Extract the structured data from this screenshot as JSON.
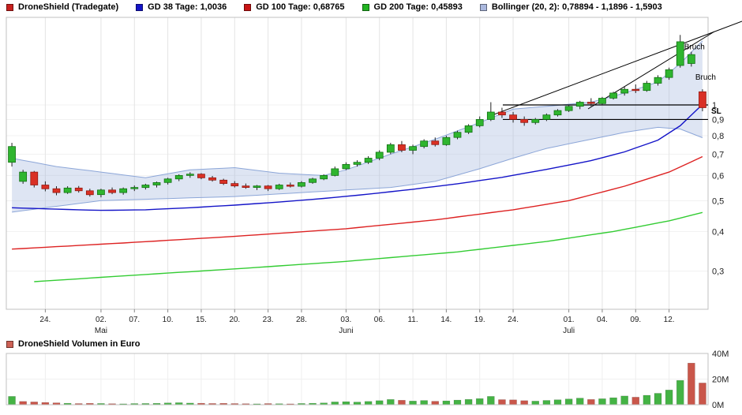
{
  "header_legend": {
    "items": [
      {
        "label": "DroneShield (Tradegate)",
        "color": "#c8201e"
      },
      {
        "label": "GD 38 Tage: 1,0036",
        "color": "#1414c8"
      },
      {
        "label": "GD 100 Tage: 0,68765",
        "color": "#c81414"
      },
      {
        "label": "GD 200 Tage: 0,45893",
        "color": "#22b422"
      },
      {
        "label": "Bollinger (20, 2): 0,78894 - 1,1896 - 1,5903",
        "color": "#aab8de"
      }
    ]
  },
  "volume_panel": {
    "legend_label": "DroneShield Volumen in Euro",
    "legend_color": "#cd6155",
    "vmax": 40,
    "y_ticks": [
      {
        "v": 40,
        "label": "40M"
      },
      {
        "v": 20,
        "label": "20M"
      },
      {
        "v": 0,
        "label": "0M"
      }
    ]
  },
  "chart_data": {
    "type": "candlestick+volume",
    "title": "DroneShield (Tradegate)",
    "y_scale": "log",
    "ylim": [
      0.27,
      1.85
    ],
    "y_ticks": [
      {
        "v": 1.0,
        "label": "1"
      },
      {
        "v": 0.9,
        "label": "0,9"
      },
      {
        "v": 0.8,
        "label": "0,8"
      },
      {
        "v": 0.7,
        "label": "0,7"
      },
      {
        "v": 0.6,
        "label": "0,6"
      },
      {
        "v": 0.5,
        "label": "0,5"
      },
      {
        "v": 0.4,
        "label": "0,4"
      },
      {
        "v": 0.3,
        "label": "0,3"
      }
    ],
    "x_ticks": [
      {
        "i": 3,
        "label": "24."
      },
      {
        "i": 8,
        "label": "02."
      },
      {
        "i": 11,
        "label": "07."
      },
      {
        "i": 14,
        "label": "10."
      },
      {
        "i": 17,
        "label": "15."
      },
      {
        "i": 20,
        "label": "20."
      },
      {
        "i": 23,
        "label": "23."
      },
      {
        "i": 26,
        "label": "28."
      },
      {
        "i": 30,
        "label": "03."
      },
      {
        "i": 33,
        "label": "06."
      },
      {
        "i": 36,
        "label": "11."
      },
      {
        "i": 39,
        "label": "14."
      },
      {
        "i": 42,
        "label": "19."
      },
      {
        "i": 45,
        "label": "24."
      },
      {
        "i": 50,
        "label": "01."
      },
      {
        "i": 53,
        "label": "04."
      },
      {
        "i": 56,
        "label": "09."
      },
      {
        "i": 59,
        "label": "12."
      }
    ],
    "month_labels": [
      {
        "i": 8,
        "label": "Mai"
      },
      {
        "i": 30,
        "label": "Juni"
      },
      {
        "i": 50,
        "label": "Juli"
      }
    ],
    "candles": {
      "columns": [
        "date",
        "open",
        "high",
        "low",
        "close",
        "volume_mio_eur"
      ],
      "rows": [
        [
          "19.04.",
          0.66,
          0.76,
          0.64,
          0.74,
          6.5
        ],
        [
          "22.04.",
          0.575,
          0.625,
          0.565,
          0.615,
          2.6
        ],
        [
          "23.04.",
          0.615,
          0.62,
          0.55,
          0.56,
          2.2
        ],
        [
          "24.04.",
          0.56,
          0.575,
          0.535,
          0.545,
          1.8
        ],
        [
          "25.04.",
          0.545,
          0.555,
          0.52,
          0.53,
          1.5
        ],
        [
          "26.04.",
          0.53,
          0.555,
          0.525,
          0.548,
          1.2
        ],
        [
          "29.04.",
          0.548,
          0.556,
          0.53,
          0.537,
          0.9
        ],
        [
          "30.04.",
          0.537,
          0.545,
          0.515,
          0.522,
          1.1
        ],
        [
          "02.05.",
          0.522,
          0.545,
          0.512,
          0.54,
          1.0
        ],
        [
          "03.05.",
          0.54,
          0.55,
          0.524,
          0.53,
          0.8
        ],
        [
          "06.05.",
          0.53,
          0.55,
          0.522,
          0.545,
          0.7
        ],
        [
          "07.05.",
          0.545,
          0.558,
          0.536,
          0.55,
          0.9
        ],
        [
          "08.05.",
          0.55,
          0.565,
          0.542,
          0.56,
          1.0
        ],
        [
          "09.05.",
          0.56,
          0.574,
          0.55,
          0.57,
          1.1
        ],
        [
          "10.05.",
          0.57,
          0.59,
          0.562,
          0.585,
          1.4
        ],
        [
          "13.05.",
          0.585,
          0.605,
          0.576,
          0.6,
          1.6
        ],
        [
          "14.05.",
          0.6,
          0.614,
          0.59,
          0.606,
          1.3
        ],
        [
          "15.05.",
          0.606,
          0.61,
          0.584,
          0.59,
          1.2
        ],
        [
          "16.05.",
          0.59,
          0.598,
          0.574,
          0.58,
          1.0
        ],
        [
          "17.05.",
          0.58,
          0.586,
          0.56,
          0.566,
          1.1
        ],
        [
          "20.05.",
          0.566,
          0.576,
          0.55,
          0.556,
          0.9
        ],
        [
          "21.05.",
          0.556,
          0.566,
          0.545,
          0.55,
          0.8
        ],
        [
          "22.05.",
          0.55,
          0.56,
          0.54,
          0.556,
          0.7
        ],
        [
          "23.05.",
          0.556,
          0.56,
          0.536,
          0.545,
          0.9
        ],
        [
          "24.05.",
          0.545,
          0.565,
          0.54,
          0.56,
          0.8
        ],
        [
          "27.05.",
          0.56,
          0.57,
          0.55,
          0.555,
          0.7
        ],
        [
          "28.05.",
          0.555,
          0.576,
          0.55,
          0.57,
          1.0
        ],
        [
          "29.05.",
          0.57,
          0.59,
          0.565,
          0.585,
          1.2
        ],
        [
          "30.05.",
          0.585,
          0.605,
          0.58,
          0.6,
          1.4
        ],
        [
          "31.05.",
          0.6,
          0.64,
          0.596,
          0.63,
          2.2
        ],
        [
          "03.06.",
          0.63,
          0.66,
          0.624,
          0.65,
          2.4
        ],
        [
          "04.06.",
          0.65,
          0.67,
          0.64,
          0.66,
          2.1
        ],
        [
          "05.06.",
          0.66,
          0.69,
          0.652,
          0.68,
          2.6
        ],
        [
          "06.06.",
          0.68,
          0.72,
          0.67,
          0.71,
          3.2
        ],
        [
          "07.06.",
          0.71,
          0.76,
          0.7,
          0.75,
          4.1
        ],
        [
          "10.06.",
          0.75,
          0.77,
          0.71,
          0.72,
          3.5
        ],
        [
          "11.06.",
          0.72,
          0.75,
          0.7,
          0.74,
          2.9
        ],
        [
          "12.06.",
          0.74,
          0.78,
          0.73,
          0.77,
          3.3
        ],
        [
          "13.06.",
          0.77,
          0.79,
          0.74,
          0.75,
          2.7
        ],
        [
          "14.06.",
          0.75,
          0.8,
          0.744,
          0.79,
          3.0
        ],
        [
          "17.06.",
          0.79,
          0.83,
          0.78,
          0.82,
          3.6
        ],
        [
          "18.06.",
          0.82,
          0.87,
          0.81,
          0.86,
          4.2
        ],
        [
          "19.06.",
          0.86,
          0.92,
          0.85,
          0.9,
          4.8
        ],
        [
          "20.06.",
          0.9,
          1.02,
          0.89,
          0.95,
          6.5
        ],
        [
          "21.06.",
          0.95,
          0.98,
          0.91,
          0.93,
          4.0
        ],
        [
          "24.06.",
          0.93,
          0.95,
          0.88,
          0.9,
          3.8
        ],
        [
          "25.06.",
          0.9,
          0.92,
          0.86,
          0.88,
          3.2
        ],
        [
          "26.06.",
          0.88,
          0.91,
          0.868,
          0.9,
          2.8
        ],
        [
          "27.06.",
          0.9,
          0.94,
          0.89,
          0.93,
          3.4
        ],
        [
          "28.06.",
          0.93,
          0.97,
          0.92,
          0.96,
          3.9
        ],
        [
          "01.07.",
          0.96,
          1.0,
          0.95,
          0.99,
          4.5
        ],
        [
          "02.07.",
          0.99,
          1.03,
          0.97,
          1.02,
          5.2
        ],
        [
          "03.07.",
          1.02,
          1.05,
          0.99,
          1.01,
          4.1
        ],
        [
          "04.07.",
          1.01,
          1.06,
          1.0,
          1.05,
          4.7
        ],
        [
          "05.07.",
          1.05,
          1.1,
          1.04,
          1.09,
          5.5
        ],
        [
          "08.07.",
          1.09,
          1.14,
          1.07,
          1.12,
          6.8
        ],
        [
          "09.07.",
          1.12,
          1.16,
          1.09,
          1.11,
          5.9
        ],
        [
          "10.07.",
          1.11,
          1.19,
          1.1,
          1.17,
          7.4
        ],
        [
          "11.07.",
          1.17,
          1.24,
          1.15,
          1.22,
          8.9
        ],
        [
          "12.07.",
          1.22,
          1.31,
          1.2,
          1.29,
          11.5
        ],
        [
          "15.07.",
          1.33,
          1.66,
          1.31,
          1.58,
          19.0
        ],
        [
          "16.07.",
          1.35,
          1.47,
          1.32,
          1.44,
          32.5
        ],
        [
          "17.07.",
          1.1,
          1.12,
          0.955,
          0.98,
          17.0
        ]
      ]
    },
    "overlays": {
      "gd38": {
        "name": "GD 38 Tage",
        "value": 1.0036,
        "color": "#1414c8",
        "points": [
          [
            0,
            0.475
          ],
          [
            4,
            0.47
          ],
          [
            8,
            0.466
          ],
          [
            12,
            0.468
          ],
          [
            16,
            0.475
          ],
          [
            20,
            0.484
          ],
          [
            24,
            0.495
          ],
          [
            28,
            0.508
          ],
          [
            32,
            0.524
          ],
          [
            36,
            0.543
          ],
          [
            40,
            0.565
          ],
          [
            44,
            0.592
          ],
          [
            48,
            0.627
          ],
          [
            52,
            0.668
          ],
          [
            55,
            0.712
          ],
          [
            58,
            0.775
          ],
          [
            60,
            0.86
          ],
          [
            62,
            1.0036
          ]
        ]
      },
      "gd100": {
        "name": "GD 100 Tage",
        "value": 0.68765,
        "color": "#dd2222",
        "points": [
          [
            0,
            0.352
          ],
          [
            10,
            0.368
          ],
          [
            20,
            0.386
          ],
          [
            30,
            0.408
          ],
          [
            38,
            0.435
          ],
          [
            45,
            0.468
          ],
          [
            50,
            0.5
          ],
          [
            55,
            0.555
          ],
          [
            59,
            0.615
          ],
          [
            62,
            0.68765
          ]
        ]
      },
      "gd200": {
        "name": "GD 200 Tage",
        "value": 0.45893,
        "color": "#33cc33",
        "points": [
          [
            2,
            0.278
          ],
          [
            10,
            0.29
          ],
          [
            20,
            0.305
          ],
          [
            30,
            0.322
          ],
          [
            40,
            0.345
          ],
          [
            48,
            0.372
          ],
          [
            54,
            0.4
          ],
          [
            59,
            0.432
          ],
          [
            62,
            0.45893
          ]
        ]
      },
      "bollinger": {
        "name": "Bollinger (20, 2)",
        "lower_value": 0.78894,
        "mid_value": 1.1896,
        "upper_value": 1.5903,
        "fill": "rgba(160,180,222,0.35)",
        "edge": "#8ca6d8",
        "upper": [
          [
            0,
            0.68
          ],
          [
            4,
            0.64
          ],
          [
            8,
            0.615
          ],
          [
            12,
            0.59
          ],
          [
            16,
            0.625
          ],
          [
            20,
            0.635
          ],
          [
            24,
            0.61
          ],
          [
            28,
            0.6
          ],
          [
            30,
            0.625
          ],
          [
            34,
            0.7
          ],
          [
            38,
            0.78
          ],
          [
            42,
            0.88
          ],
          [
            45,
            0.97
          ],
          [
            48,
            0.99
          ],
          [
            52,
            1.02
          ],
          [
            55,
            1.09
          ],
          [
            58,
            1.18
          ],
          [
            60,
            1.35
          ],
          [
            62,
            1.5903
          ]
        ],
        "lower": [
          [
            0,
            0.46
          ],
          [
            4,
            0.48
          ],
          [
            8,
            0.5
          ],
          [
            12,
            0.505
          ],
          [
            16,
            0.51
          ],
          [
            20,
            0.515
          ],
          [
            24,
            0.525
          ],
          [
            28,
            0.535
          ],
          [
            30,
            0.54
          ],
          [
            34,
            0.55
          ],
          [
            38,
            0.575
          ],
          [
            42,
            0.63
          ],
          [
            45,
            0.68
          ],
          [
            48,
            0.73
          ],
          [
            52,
            0.78
          ],
          [
            55,
            0.82
          ],
          [
            58,
            0.85
          ],
          [
            60,
            0.84
          ],
          [
            62,
            0.78894
          ]
        ]
      }
    },
    "annotations": {
      "hlines": [
        1.0,
        0.9
      ],
      "trendlines": [
        [
          618,
          148,
          940,
          27
        ],
        [
          745,
          138,
          905,
          40
        ]
      ],
      "sl_label": "SL",
      "texts": [
        {
          "i": 60,
          "v": 1.52,
          "text": "Bruch"
        },
        {
          "i": 61,
          "v": 1.22,
          "text": "Bruch"
        }
      ]
    },
    "colors": {
      "up": "#2fb52f",
      "up_stroke": "#0f6e0f",
      "down": "#d93025",
      "down_stroke": "#8f1710",
      "wick": "#222222",
      "vol_up": "#44b344",
      "vol_down": "#c9564a",
      "grid": "#e4e4e4",
      "frame": "#c0c0c0"
    }
  }
}
